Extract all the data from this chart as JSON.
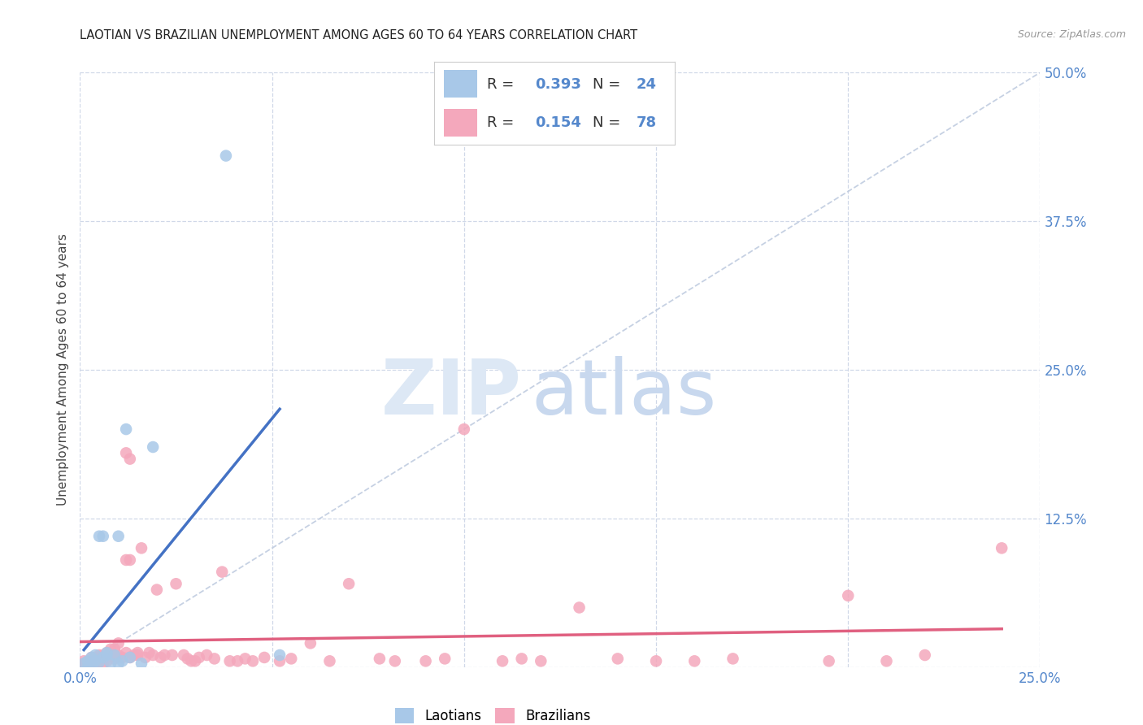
{
  "title": "LAOTIAN VS BRAZILIAN UNEMPLOYMENT AMONG AGES 60 TO 64 YEARS CORRELATION CHART",
  "source": "Source: ZipAtlas.com",
  "ylabel": "Unemployment Among Ages 60 to 64 years",
  "xlim": [
    0.0,
    0.25
  ],
  "ylim": [
    0.0,
    0.5
  ],
  "xticks": [
    0.0,
    0.05,
    0.1,
    0.15,
    0.2,
    0.25
  ],
  "yticks": [
    0.0,
    0.125,
    0.25,
    0.375,
    0.5
  ],
  "xtick_labels": [
    "0.0%",
    "",
    "",
    "",
    "",
    "25.0%"
  ],
  "ytick_labels": [
    "",
    "12.5%",
    "25.0%",
    "37.5%",
    "50.0%"
  ],
  "laotian_color": "#a8c8e8",
  "brazilian_color": "#f4a8bc",
  "laotian_line_color": "#4472c4",
  "brazilian_line_color": "#e06080",
  "diagonal_color": "#c0cce0",
  "grid_color": "#d0d8e8",
  "background_color": "#ffffff",
  "tick_color": "#5588cc",
  "laotian_x": [
    0.001,
    0.002,
    0.002,
    0.003,
    0.003,
    0.004,
    0.004,
    0.005,
    0.005,
    0.006,
    0.006,
    0.007,
    0.007,
    0.008,
    0.009,
    0.01,
    0.01,
    0.011,
    0.012,
    0.013,
    0.016,
    0.019,
    0.038,
    0.052
  ],
  "laotian_y": [
    0.003,
    0.0,
    0.005,
    0.003,
    0.008,
    0.005,
    0.01,
    0.004,
    0.11,
    0.008,
    0.11,
    0.01,
    0.012,
    0.003,
    0.01,
    0.11,
    0.003,
    0.005,
    0.2,
    0.008,
    0.003,
    0.185,
    0.43,
    0.01
  ],
  "brazilian_x": [
    0.001,
    0.001,
    0.002,
    0.002,
    0.003,
    0.003,
    0.003,
    0.004,
    0.004,
    0.005,
    0.005,
    0.005,
    0.006,
    0.006,
    0.007,
    0.007,
    0.007,
    0.008,
    0.008,
    0.009,
    0.009,
    0.01,
    0.01,
    0.011,
    0.012,
    0.012,
    0.013,
    0.013,
    0.014,
    0.015,
    0.015,
    0.016,
    0.017,
    0.018,
    0.019,
    0.02,
    0.021,
    0.022,
    0.024,
    0.025,
    0.027,
    0.028,
    0.029,
    0.03,
    0.031,
    0.033,
    0.035,
    0.037,
    0.039,
    0.041,
    0.043,
    0.045,
    0.048,
    0.052,
    0.055,
    0.06,
    0.065,
    0.07,
    0.078,
    0.082,
    0.09,
    0.095,
    0.1,
    0.11,
    0.115,
    0.12,
    0.13,
    0.14,
    0.15,
    0.16,
    0.17,
    0.195,
    0.2,
    0.21,
    0.22,
    0.24,
    0.012,
    0.013
  ],
  "brazilian_y": [
    0.003,
    0.005,
    0.002,
    0.004,
    0.003,
    0.005,
    0.008,
    0.003,
    0.008,
    0.004,
    0.008,
    0.01,
    0.003,
    0.01,
    0.005,
    0.008,
    0.012,
    0.01,
    0.015,
    0.007,
    0.015,
    0.01,
    0.02,
    0.008,
    0.012,
    0.18,
    0.175,
    0.09,
    0.01,
    0.012,
    0.01,
    0.1,
    0.008,
    0.012,
    0.01,
    0.065,
    0.008,
    0.01,
    0.01,
    0.07,
    0.01,
    0.007,
    0.005,
    0.005,
    0.008,
    0.01,
    0.007,
    0.08,
    0.005,
    0.005,
    0.007,
    0.005,
    0.008,
    0.005,
    0.007,
    0.02,
    0.005,
    0.07,
    0.007,
    0.005,
    0.005,
    0.007,
    0.2,
    0.005,
    0.007,
    0.005,
    0.05,
    0.007,
    0.005,
    0.005,
    0.007,
    0.005,
    0.06,
    0.005,
    0.01,
    0.1,
    0.09,
    0.008
  ]
}
